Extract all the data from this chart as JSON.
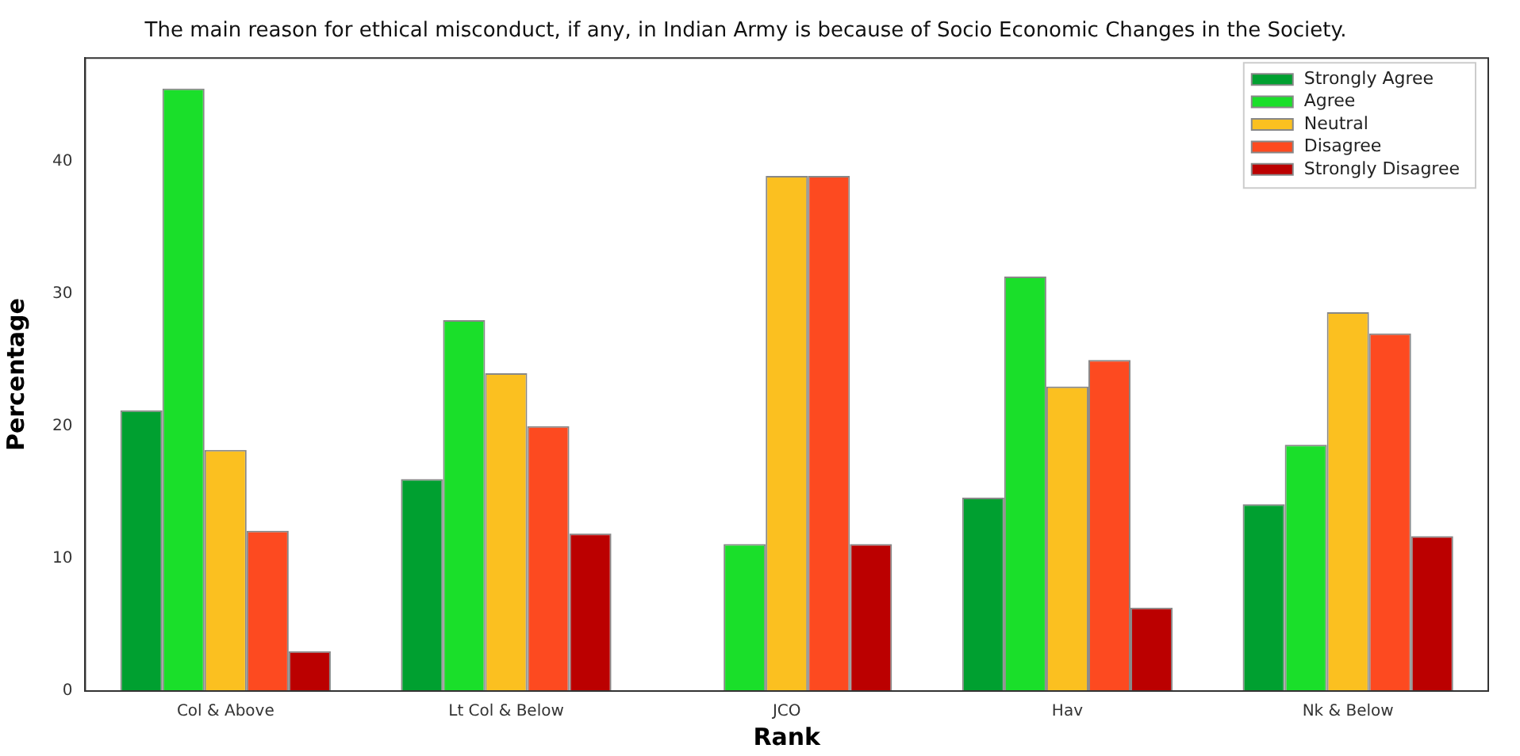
{
  "chart_data": {
    "type": "bar",
    "title": "The main reason for ethical misconduct, if any, in Indian Army is because of Socio Economic Changes in the Society.",
    "xlabel": "Rank",
    "ylabel": "Percentage",
    "categories": [
      "Col & Above",
      "Lt Col & Below",
      "JCO",
      "Hav",
      "Nk & Below"
    ],
    "series": [
      {
        "name": "Strongly Agree",
        "color": "#00a030",
        "values": [
          21.2,
          16.0,
          0,
          14.6,
          14.1
        ]
      },
      {
        "name": "Agree",
        "color": "#1adf2a",
        "values": [
          45.5,
          28.0,
          11.1,
          31.3,
          18.6
        ]
      },
      {
        "name": "Neutral",
        "color": "#fbc020",
        "values": [
          18.2,
          24.0,
          38.9,
          23.0,
          28.6
        ]
      },
      {
        "name": "Disagree",
        "color": "#fd4a20",
        "values": [
          12.1,
          20.0,
          38.9,
          25.0,
          27.0
        ]
      },
      {
        "name": "Strongly Disagree",
        "color": "#bb0000",
        "values": [
          3.0,
          11.9,
          11.1,
          6.3,
          11.7
        ]
      }
    ],
    "ylim": [
      0,
      47.8
    ],
    "yticks": [
      0,
      10,
      20,
      30,
      40
    ],
    "grid": false,
    "legend": "top right"
  }
}
